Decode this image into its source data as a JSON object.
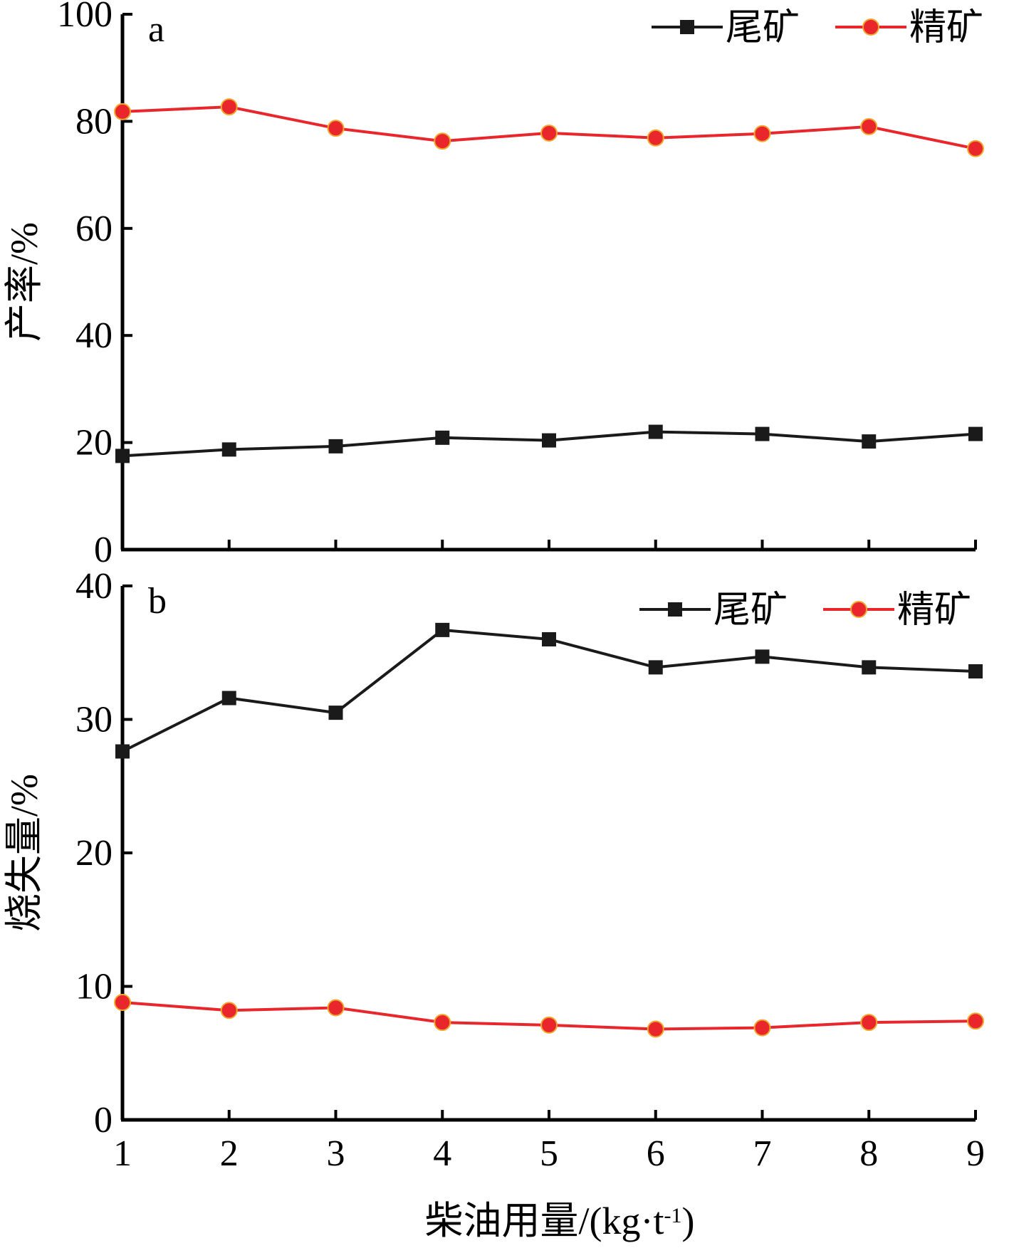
{
  "colors": {
    "tailings": "#1a1a1a",
    "concentrate": "#e8262b",
    "marker_edge": "#f0a830",
    "axis": "#000000"
  },
  "chart_data": [
    {
      "type": "line",
      "panel_label": "a",
      "ylabel": "产率/%",
      "xlabel": "",
      "x": [
        1,
        2,
        3,
        4,
        5,
        6,
        7,
        8,
        9
      ],
      "xlim": [
        1,
        9
      ],
      "ylim": [
        0,
        100
      ],
      "y_ticks": [
        0,
        20,
        40,
        60,
        80,
        100
      ],
      "legend_position": "top-right",
      "series": [
        {
          "name": "尾矿",
          "marker": "square",
          "color_key": "tailings",
          "values": [
            17.5,
            18.7,
            19.3,
            20.9,
            20.4,
            22.0,
            21.6,
            20.2,
            21.6
          ]
        },
        {
          "name": "精矿",
          "marker": "circle",
          "color_key": "concentrate",
          "values": [
            81.8,
            82.7,
            78.7,
            76.3,
            77.8,
            76.9,
            77.7,
            79.0,
            74.9
          ]
        }
      ]
    },
    {
      "type": "line",
      "panel_label": "b",
      "ylabel": "烧失量/%",
      "xlabel": "柴油用量/(kg·t",
      "xlabel_sup": "-1",
      "xlabel_end": ")",
      "x": [
        1,
        2,
        3,
        4,
        5,
        6,
        7,
        8,
        9
      ],
      "x_ticks": [
        1,
        2,
        3,
        4,
        5,
        6,
        7,
        8,
        9
      ],
      "xlim": [
        1,
        9
      ],
      "ylim": [
        0,
        40
      ],
      "y_ticks": [
        0,
        10,
        20,
        30,
        40
      ],
      "legend_position": "top-right",
      "series": [
        {
          "name": "尾矿",
          "marker": "square",
          "color_key": "tailings",
          "values": [
            27.6,
            31.6,
            30.5,
            36.7,
            36.0,
            33.9,
            34.7,
            33.9,
            33.6
          ]
        },
        {
          "name": "精矿",
          "marker": "circle",
          "color_key": "concentrate",
          "values": [
            8.8,
            8.2,
            8.4,
            7.3,
            7.1,
            6.8,
            6.9,
            7.3,
            7.4
          ]
        }
      ]
    }
  ]
}
